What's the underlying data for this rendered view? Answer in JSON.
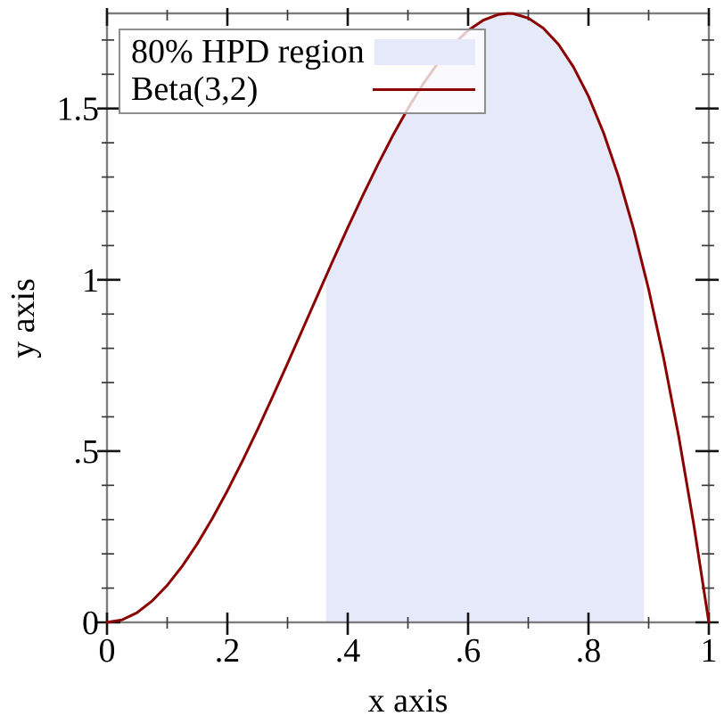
{
  "chart_data": {
    "type": "line",
    "title": "",
    "xlabel": "x axis",
    "ylabel": "y axis",
    "xlim": [
      0,
      1
    ],
    "ylim": [
      0,
      1.7778
    ],
    "grid": false,
    "x_major_ticks": [
      0,
      0.2,
      0.4,
      0.6,
      0.8,
      1
    ],
    "x_tick_labels": [
      "0",
      ".2",
      ".4",
      ".6",
      ".8",
      "1"
    ],
    "x_minor_ticks": [
      0.1,
      0.3,
      0.5,
      0.7,
      0.9
    ],
    "y_major_ticks": [
      0,
      0.5,
      1,
      1.5
    ],
    "y_tick_labels": [
      "0",
      ".5",
      "1",
      "1.5"
    ],
    "y_minor_ticks": [
      0.1,
      0.2,
      0.3,
      0.4,
      0.6,
      0.7,
      0.8,
      0.9,
      1.1,
      1.2,
      1.3,
      1.4,
      1.6,
      1.7
    ],
    "legend": {
      "position": "top-left",
      "entries": [
        {
          "label": "80% HPD region",
          "swatch": "area"
        },
        {
          "label": "Beta(3,2)",
          "swatch": "line"
        }
      ]
    },
    "series": [
      {
        "name": "80% HPD region",
        "type": "area",
        "color": "#e6e9fa",
        "interval": [
          0.364,
          0.892
        ]
      },
      {
        "name": "Beta(3,2)",
        "type": "line",
        "color": "#8b0000",
        "x": [
          0,
          0.025,
          0.05,
          0.075,
          0.1,
          0.125,
          0.15,
          0.175,
          0.2,
          0.225,
          0.25,
          0.275,
          0.3,
          0.325,
          0.35,
          0.375,
          0.4,
          0.425,
          0.45,
          0.475,
          0.5,
          0.525,
          0.55,
          0.575,
          0.6,
          0.625,
          0.65,
          0.6667,
          0.675,
          0.7,
          0.725,
          0.75,
          0.775,
          0.8,
          0.825,
          0.85,
          0.875,
          0.9,
          0.925,
          0.95,
          0.975,
          1
        ],
        "y": [
          0,
          0.0073,
          0.0285,
          0.0624,
          0.108,
          0.1641,
          0.2295,
          0.3032,
          0.384,
          0.4708,
          0.5625,
          0.6579,
          0.756,
          0.8556,
          0.9555,
          1.0547,
          1.152,
          1.2463,
          1.3365,
          1.4214,
          1.5,
          1.5711,
          1.6335,
          1.6862,
          1.728,
          1.7578,
          1.7745,
          1.7778,
          1.7769,
          1.764,
          1.7346,
          1.6875,
          1.6217,
          1.536,
          1.4293,
          1.3005,
          1.1484,
          0.972,
          0.7701,
          0.5415,
          0.2852,
          0
        ]
      }
    ],
    "colors": {
      "frame": "#7d7d7d",
      "tick_major": "#141414",
      "tick_minor": "#3a3a3a",
      "text": "#000000"
    }
  }
}
